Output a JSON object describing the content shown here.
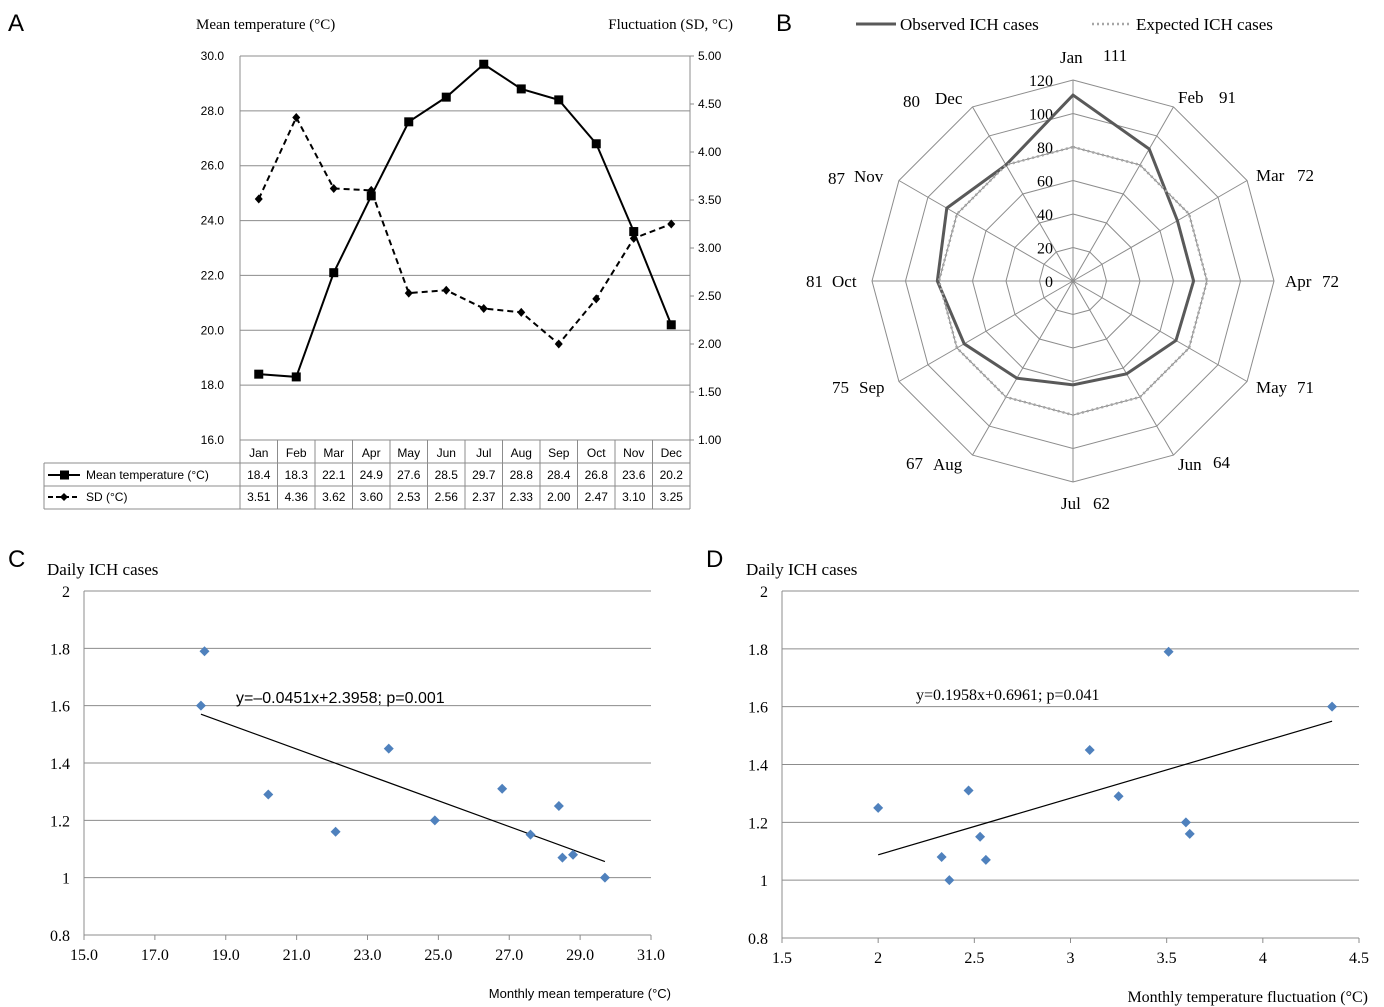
{
  "panel_labels": [
    "A",
    "B",
    "C",
    "D"
  ],
  "chart_data": [
    {
      "id": "A",
      "type": "line",
      "categories": [
        "Jan",
        "Feb",
        "Mar",
        "Apr",
        "May",
        "Jun",
        "Jul",
        "Aug",
        "Sep",
        "Oct",
        "Nov",
        "Dec"
      ],
      "left_axis_title": "Mean temperature (°C)",
      "right_axis_title": "Fluctuation (SD, °C)",
      "ylim_left": [
        16,
        30
      ],
      "yticks_left": [
        "16.0",
        "18.0",
        "20.0",
        "22.0",
        "24.0",
        "26.0",
        "28.0",
        "30.0"
      ],
      "ylim_right": [
        1,
        5
      ],
      "yticks_right": [
        "1.00",
        "1.50",
        "2.00",
        "2.50",
        "3.00",
        "3.50",
        "4.00",
        "4.50",
        "5.00"
      ],
      "grid": true,
      "series": [
        {
          "name": "Mean temperature (°C)",
          "axis": "left",
          "style": "solid",
          "marker": "square",
          "values": [
            18.4,
            18.3,
            22.1,
            24.9,
            27.6,
            28.5,
            29.7,
            28.8,
            28.4,
            26.8,
            23.6,
            20.2
          ],
          "labels": [
            "18.4",
            "18.3",
            "22.1",
            "24.9",
            "27.6",
            "28.5",
            "29.7",
            "28.8",
            "28.4",
            "26.8",
            "23.6",
            "20.2"
          ]
        },
        {
          "name": "SD (°C)",
          "axis": "right",
          "style": "dashed",
          "marker": "diamond",
          "values": [
            3.51,
            4.36,
            3.62,
            3.6,
            2.53,
            2.56,
            2.37,
            2.33,
            2.0,
            2.47,
            3.1,
            3.25
          ],
          "labels": [
            "3.51",
            "4.36",
            "3.62",
            "3.60",
            "2.53",
            "2.56",
            "2.37",
            "2.33",
            "2.00",
            "2.47",
            "3.10",
            "3.25"
          ]
        }
      ]
    },
    {
      "id": "B",
      "type": "radar",
      "categories": [
        "Jan",
        "Feb",
        "Mar",
        "Apr",
        "May",
        "Jun",
        "Jul",
        "Aug",
        "Sep",
        "Oct",
        "Nov",
        "Dec"
      ],
      "rlim": [
        0,
        120
      ],
      "rticks": [
        "0",
        "20",
        "40",
        "60",
        "80",
        "100",
        "120"
      ],
      "value_labels": [
        "111",
        "91",
        "72",
        "72",
        "71",
        "64",
        "62",
        "67",
        "75",
        "81",
        "87",
        "80"
      ],
      "legend_position": "top",
      "series": [
        {
          "name": "Observed ICH cases",
          "style": "solid",
          "color": "#595959",
          "values": [
            111,
            91,
            72,
            72,
            71,
            64,
            62,
            67,
            75,
            81,
            87,
            80
          ]
        },
        {
          "name": "Expected ICH cases",
          "style": "dotted",
          "color": "#a6a6a6",
          "values": [
            80,
            80,
            80,
            80,
            80,
            80,
            80,
            80,
            80,
            80,
            80,
            80
          ]
        }
      ]
    },
    {
      "id": "C",
      "type": "scatter",
      "ylabel": "Daily ICH cases",
      "xlabel": "Monthly mean temperature (°C)",
      "xlim": [
        15,
        31
      ],
      "xticks": [
        "15.0",
        "17.0",
        "19.0",
        "21.0",
        "23.0",
        "25.0",
        "27.0",
        "29.0",
        "31.0"
      ],
      "ylim": [
        0.8,
        2
      ],
      "yticks": [
        "0.8",
        "1",
        "1.2",
        "1.4",
        "1.6",
        "1.8",
        "2"
      ],
      "grid": true,
      "marker_color": "#4f81bd",
      "annotation": "y=–0.0451x+2.3958; p=0.001",
      "trendline": {
        "slope": -0.0451,
        "intercept": 2.3958,
        "x_range": [
          18.3,
          29.7
        ]
      },
      "points": [
        [
          18.3,
          1.6
        ],
        [
          18.4,
          1.79
        ],
        [
          20.2,
          1.29
        ],
        [
          22.1,
          1.16
        ],
        [
          23.6,
          1.45
        ],
        [
          24.9,
          1.2
        ],
        [
          26.8,
          1.31
        ],
        [
          27.6,
          1.15
        ],
        [
          28.4,
          1.25
        ],
        [
          28.5,
          1.07
        ],
        [
          28.8,
          1.08
        ],
        [
          29.7,
          1.0
        ]
      ]
    },
    {
      "id": "D",
      "type": "scatter",
      "ylabel": "Daily ICH cases",
      "xlabel": "Monthly temperature fluctuation (°C)",
      "xlim": [
        1.5,
        4.5
      ],
      "xticks": [
        "1.5",
        "2",
        "2.5",
        "3",
        "3.5",
        "4",
        "4.5"
      ],
      "ylim": [
        0.8,
        2
      ],
      "yticks": [
        "0.8",
        "1",
        "1.2",
        "1.4",
        "1.6",
        "1.8",
        "2"
      ],
      "grid": true,
      "marker_color": "#4f81bd",
      "annotation": "y=0.1958x+0.6961; p=0.041",
      "trendline": {
        "slope": 0.1958,
        "intercept": 0.6961,
        "x_range": [
          2.0,
          4.36
        ]
      },
      "points": [
        [
          2.0,
          1.25
        ],
        [
          2.33,
          1.08
        ],
        [
          2.37,
          1.0
        ],
        [
          2.47,
          1.31
        ],
        [
          2.53,
          1.15
        ],
        [
          2.56,
          1.07
        ],
        [
          3.1,
          1.45
        ],
        [
          3.25,
          1.29
        ],
        [
          3.51,
          1.79
        ],
        [
          3.6,
          1.2
        ],
        [
          3.62,
          1.16
        ],
        [
          4.36,
          1.6
        ]
      ]
    }
  ]
}
